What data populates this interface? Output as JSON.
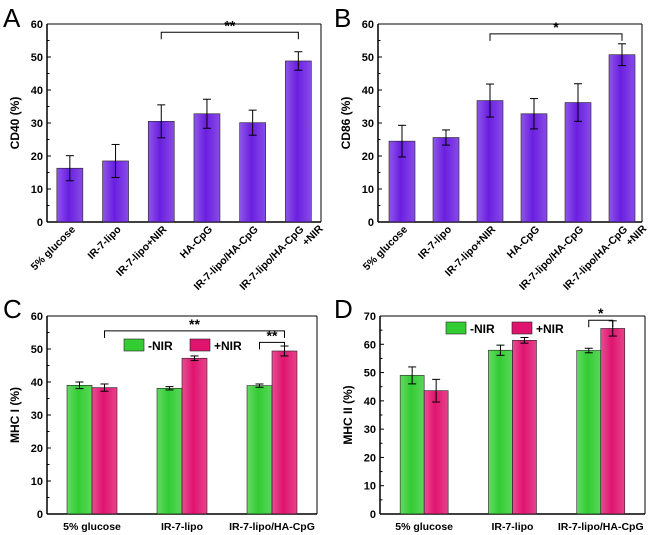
{
  "colors": {
    "purple": "#6a1fe0",
    "green": "#33cc33",
    "magenta": "#e0146f",
    "axis": "#000000"
  },
  "chart_data": [
    {
      "panel": "A",
      "type": "bar",
      "ylabel": "CD40 (%)",
      "ylim": [
        0,
        60
      ],
      "yticks": [
        0,
        10,
        20,
        30,
        40,
        50,
        60
      ],
      "categories": [
        "5% glucose",
        "IR-7-lipo",
        "IR-7-lipo+NIR",
        "HA-CpG",
        "IR-7-lipo/HA-CpG",
        "IR-7-lipo/HA-CpG\n+NIR"
      ],
      "series": [
        {
          "name": "",
          "values": [
            16.3,
            18.5,
            30.5,
            32.8,
            30.1,
            48.8
          ],
          "errors": [
            3.8,
            5.0,
            5.0,
            4.4,
            3.8,
            2.8
          ]
        }
      ],
      "significance": [
        {
          "from": 2,
          "to": 5,
          "label": "**",
          "y": 57.5
        }
      ]
    },
    {
      "panel": "B",
      "type": "bar",
      "ylabel": "CD86 (%)",
      "ylim": [
        0,
        60
      ],
      "yticks": [
        0,
        10,
        20,
        30,
        40,
        50,
        60
      ],
      "categories": [
        "5% glucose",
        "IR-7-lipo",
        "IR-7-lipo+NIR",
        "HA-CpG",
        "IR-7-lipo/HA-CpG",
        "IR-7-lipo/HA-CpG\n+NIR"
      ],
      "series": [
        {
          "name": "",
          "values": [
            24.5,
            25.6,
            36.8,
            32.8,
            36.2,
            50.7
          ],
          "errors": [
            4.8,
            2.3,
            5.0,
            4.6,
            5.7,
            3.3
          ]
        }
      ],
      "significance": [
        {
          "from": 2,
          "to": 5,
          "label": "*",
          "y": 57.0
        }
      ]
    },
    {
      "panel": "C",
      "type": "bar",
      "ylabel": "MHC I (%)",
      "ylim": [
        0,
        60
      ],
      "yticks": [
        0,
        10,
        20,
        30,
        40,
        50,
        60
      ],
      "categories": [
        "5% glucose",
        "IR-7-lipo",
        "IR-7-lipo/HA-CpG"
      ],
      "series": [
        {
          "name": "-NIR",
          "values": [
            39.0,
            38.1,
            38.9
          ],
          "errors": [
            1.0,
            0.5,
            0.5
          ]
        },
        {
          "name": "+NIR",
          "values": [
            38.3,
            47.2,
            49.4
          ],
          "errors": [
            1.1,
            0.7,
            1.5
          ]
        }
      ],
      "significance": [
        {
          "from": [
            0,
            1
          ],
          "to": [
            2,
            1
          ],
          "label": "**",
          "y": 55.5
        },
        {
          "from": [
            2,
            0
          ],
          "to": [
            2,
            1
          ],
          "label": "**",
          "y": 52.0
        }
      ],
      "legend": "top"
    },
    {
      "panel": "D",
      "type": "bar",
      "ylabel": "MHC II (%)",
      "ylim": [
        0,
        70
      ],
      "yticks": [
        0,
        10,
        20,
        30,
        40,
        50,
        60,
        70
      ],
      "categories": [
        "5% glucose",
        "IR-7-lipo",
        "IR-7-lipo/HA-CpG"
      ],
      "series": [
        {
          "name": "-NIR",
          "values": [
            49.0,
            57.9,
            57.8
          ],
          "errors": [
            3.0,
            1.8,
            0.8
          ]
        },
        {
          "name": "+NIR",
          "values": [
            43.6,
            61.4,
            65.6
          ],
          "errors": [
            4.0,
            1.0,
            2.7
          ]
        }
      ],
      "significance": [
        {
          "from": [
            2,
            0
          ],
          "to": [
            2,
            1
          ],
          "label": "*",
          "y": 68.5
        }
      ],
      "legend": "top"
    }
  ]
}
